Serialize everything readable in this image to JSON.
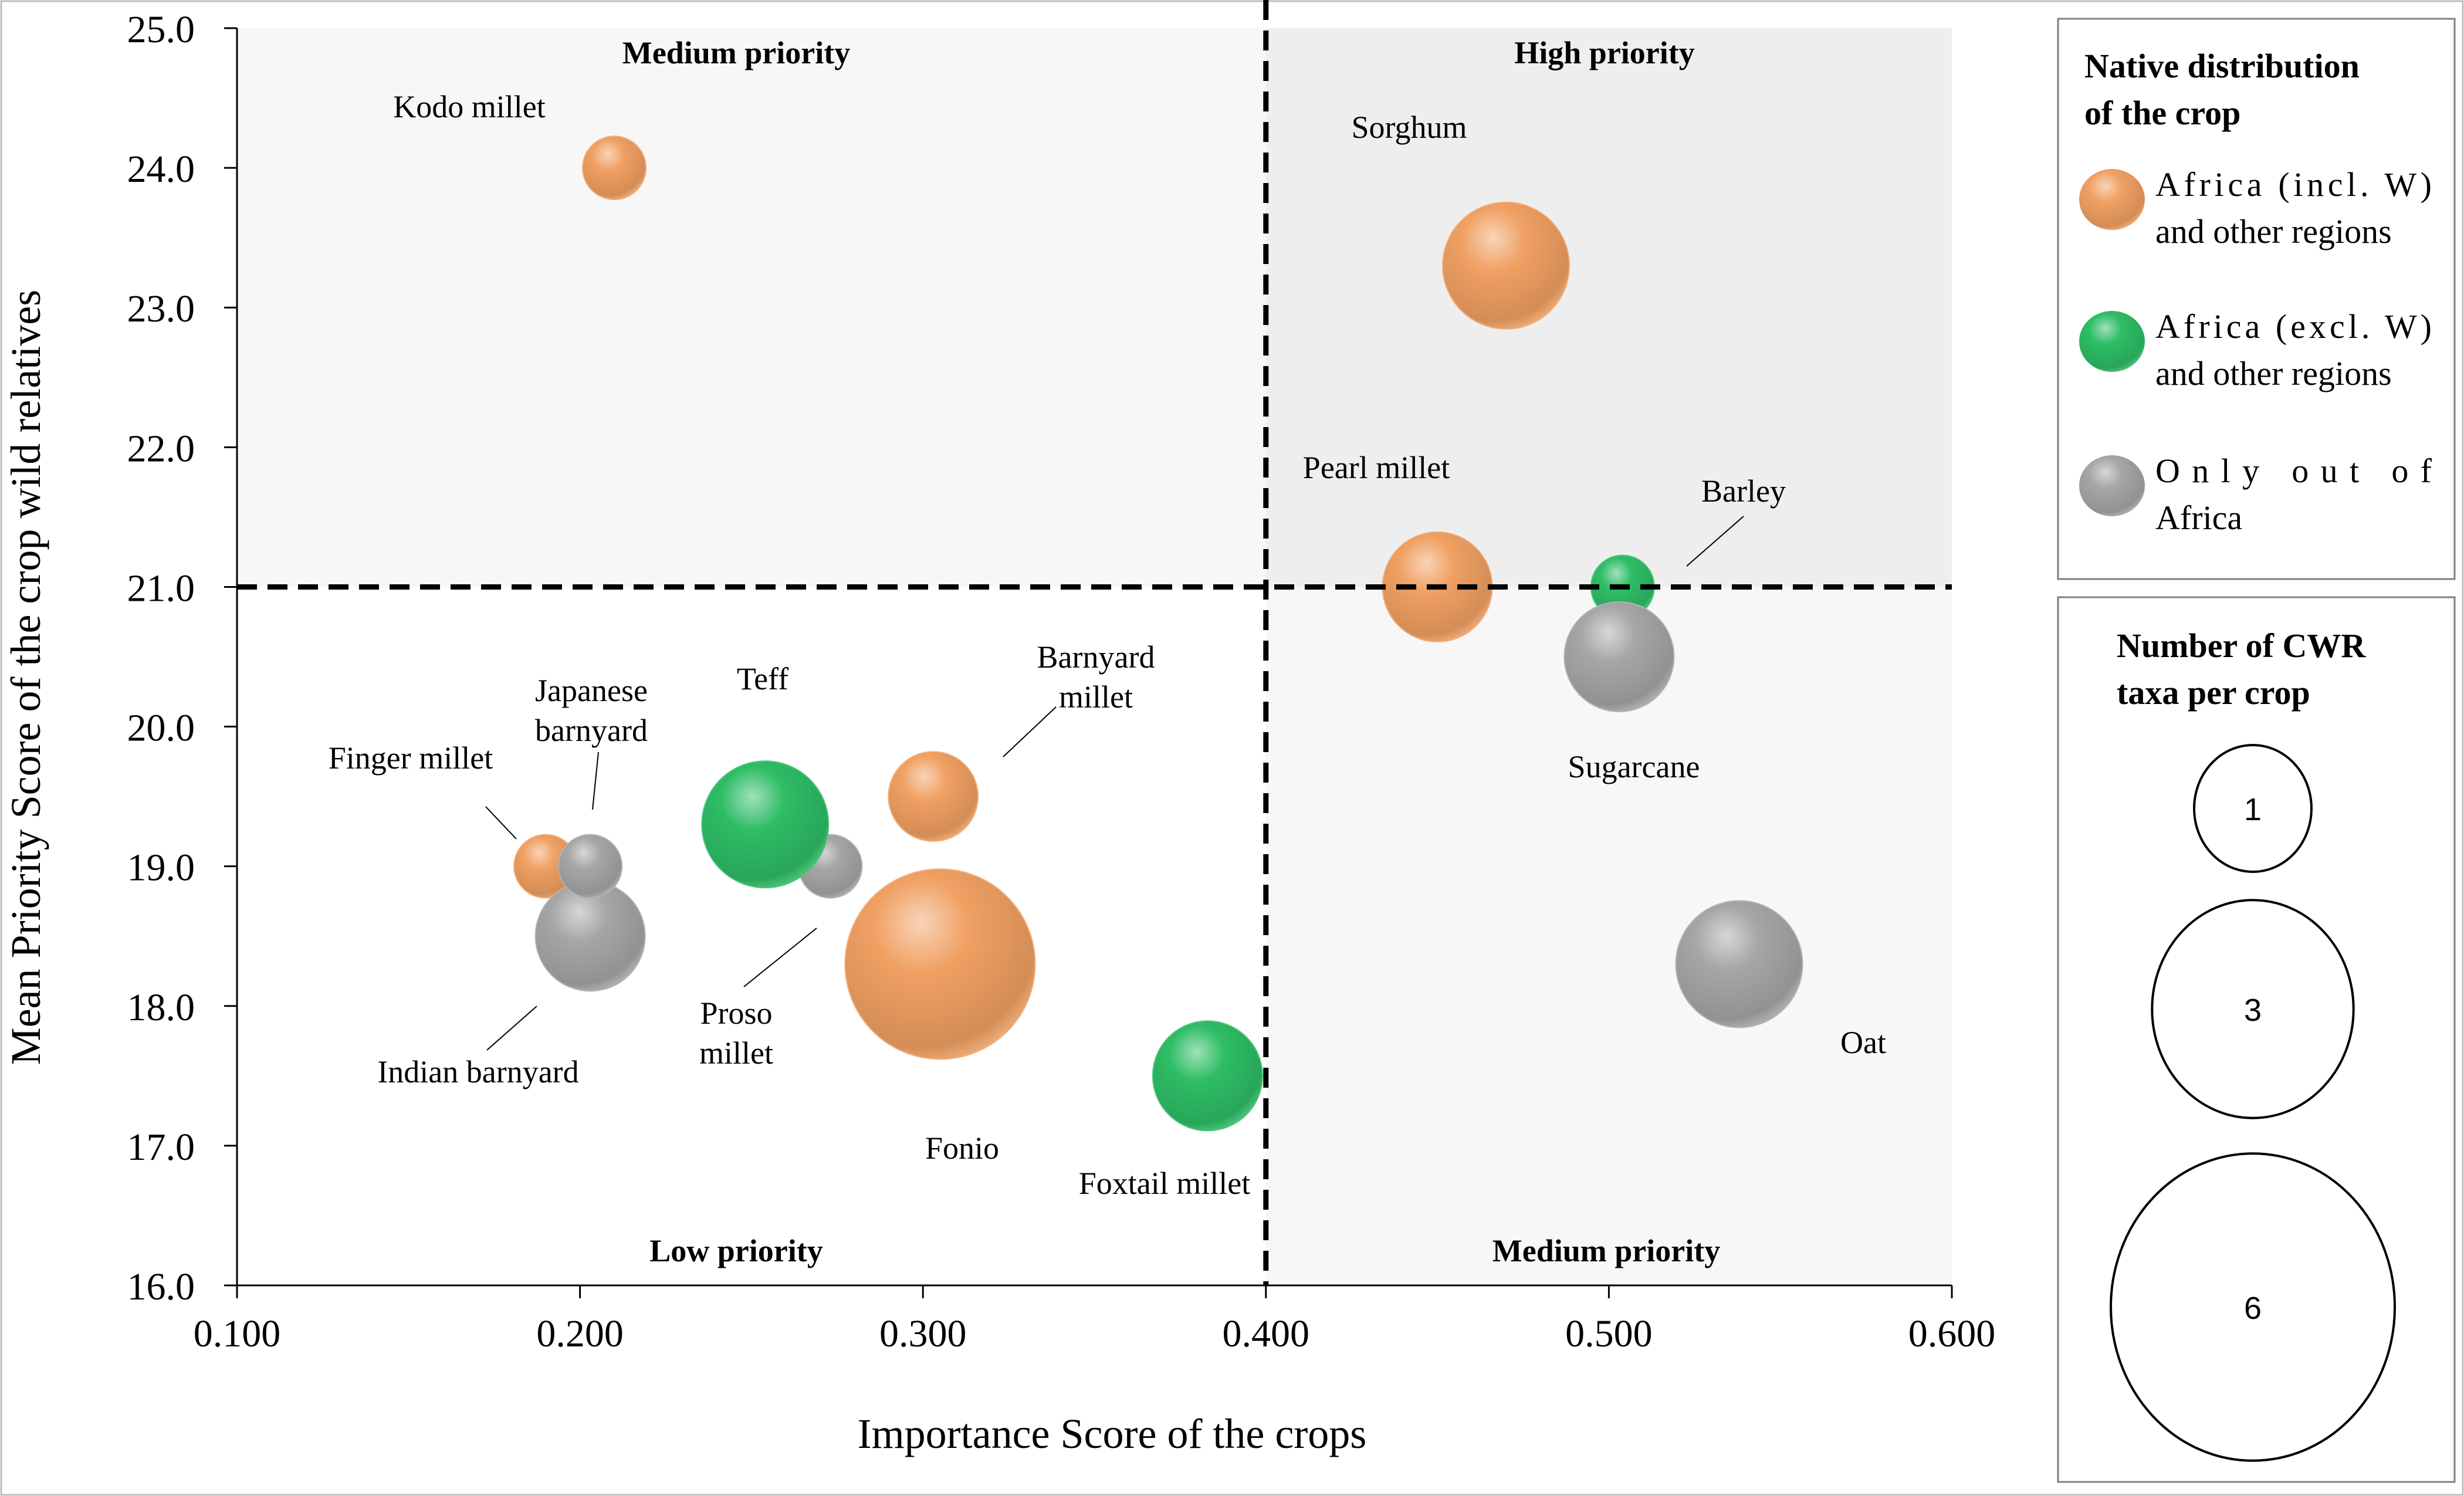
{
  "chart_data": {
    "type": "bubble",
    "xlabel": "Importance Score of the crops",
    "ylabel": "Mean Priority Score of the crop wild relatives",
    "xlim": [
      0.1,
      0.6
    ],
    "ylim": [
      16.0,
      25.0
    ],
    "x_ticks": [
      0.1,
      0.2,
      0.3,
      0.4,
      0.5,
      0.6
    ],
    "x_tick_labels": [
      "0.100",
      "0.200",
      "0.300",
      "0.400",
      "0.500",
      "0.600"
    ],
    "y_ticks": [
      16,
      17,
      18,
      19,
      20,
      21,
      22,
      23,
      24,
      25
    ],
    "y_tick_labels": [
      "16.0",
      "17.0",
      "18.0",
      "19.0",
      "20.0",
      "21.0",
      "22.0",
      "23.0",
      "24.0",
      "25.0"
    ],
    "thresholds": {
      "x": 0.4,
      "y": 21.0
    },
    "quadrant_labels": {
      "top_left": "Medium priority",
      "top_right": "High priority",
      "bottom_left": "Low priority",
      "bottom_right": "Medium priority"
    },
    "colors": {
      "africa_incl_w": "#f0a062",
      "africa_excl_w": "#2ebd65",
      "out_of_africa": "#a6a6a6",
      "upper_left_bg": "#f7f7f7",
      "upper_right_bg": "#eeeeee",
      "lower_right_bg": "#f7f7f7"
    },
    "points": [
      {
        "name": "Kodo millet",
        "label_lines": [
          "Kodo millet"
        ],
        "x": 0.21,
        "y": 24.0,
        "taxa": 1,
        "group": "africa_incl_w"
      },
      {
        "name": "Sorghum",
        "label_lines": [
          "Sorghum"
        ],
        "x": 0.47,
        "y": 23.3,
        "taxa": 4,
        "group": "africa_incl_w"
      },
      {
        "name": "Pearl millet",
        "label_lines": [
          "Pearl millet"
        ],
        "x": 0.45,
        "y": 21.0,
        "taxa": 3,
        "group": "africa_incl_w"
      },
      {
        "name": "Barley",
        "label_lines": [
          "Barley"
        ],
        "x": 0.504,
        "y": 21.0,
        "taxa": 1,
        "group": "africa_excl_w"
      },
      {
        "name": "Sugarcane",
        "label_lines": [
          "Sugarcane"
        ],
        "x": 0.503,
        "y": 20.5,
        "taxa": 3,
        "group": "out_of_africa"
      },
      {
        "name": "Oat",
        "label_lines": [
          "Oat"
        ],
        "x": 0.538,
        "y": 18.3,
        "taxa": 4,
        "group": "out_of_africa"
      },
      {
        "name": "Barnyard millet",
        "label_lines": [
          "Barnyard",
          "millet"
        ],
        "x": 0.303,
        "y": 19.5,
        "taxa": 2,
        "group": "africa_incl_w"
      },
      {
        "name": "Finger millet",
        "label_lines": [
          "Finger millet"
        ],
        "x": 0.19,
        "y": 19.0,
        "taxa": 1,
        "group": "africa_incl_w"
      },
      {
        "name": "Indian barnyard",
        "label_lines": [
          "Indian barnyard"
        ],
        "x": 0.203,
        "y": 18.5,
        "taxa": 3,
        "group": "out_of_africa"
      },
      {
        "name": "Japanese barnyard",
        "label_lines": [
          "Japanese",
          "barnyard"
        ],
        "x": 0.203,
        "y": 19.0,
        "taxa": 1,
        "group": "out_of_africa"
      },
      {
        "name": "Proso millet",
        "label_lines": [
          "Proso",
          "millet"
        ],
        "x": 0.273,
        "y": 19.0,
        "taxa": 1,
        "group": "out_of_africa"
      },
      {
        "name": "Fonio",
        "label_lines": [
          "Fonio"
        ],
        "x": 0.305,
        "y": 18.3,
        "taxa": 9,
        "group": "africa_incl_w"
      },
      {
        "name": "Teff",
        "label_lines": [
          "Teff"
        ],
        "x": 0.254,
        "y": 19.3,
        "taxa": 4,
        "group": "africa_excl_w"
      },
      {
        "name": "Foxtail millet",
        "label_lines": [
          "Foxtail millet"
        ],
        "x": 0.383,
        "y": 17.5,
        "taxa": 3,
        "group": "africa_excl_w"
      }
    ],
    "legend_color": {
      "title_lines": [
        "Native distribution",
        "of the crop"
      ],
      "items": [
        {
          "group": "africa_incl_w",
          "lines": [
            "Africa (incl. W)",
            "and other regions"
          ]
        },
        {
          "group": "africa_excl_w",
          "lines": [
            "Africa (excl. W)",
            "and other regions"
          ]
        },
        {
          "group": "out_of_africa",
          "lines": [
            "Only out of",
            "Africa"
          ]
        }
      ]
    },
    "legend_size": {
      "title_lines": [
        "Number of CWR",
        "taxa per crop"
      ],
      "items": [
        {
          "taxa": 1,
          "label": "1"
        },
        {
          "taxa": 3,
          "label": "3"
        },
        {
          "taxa": 6,
          "label": "6"
        }
      ]
    }
  }
}
